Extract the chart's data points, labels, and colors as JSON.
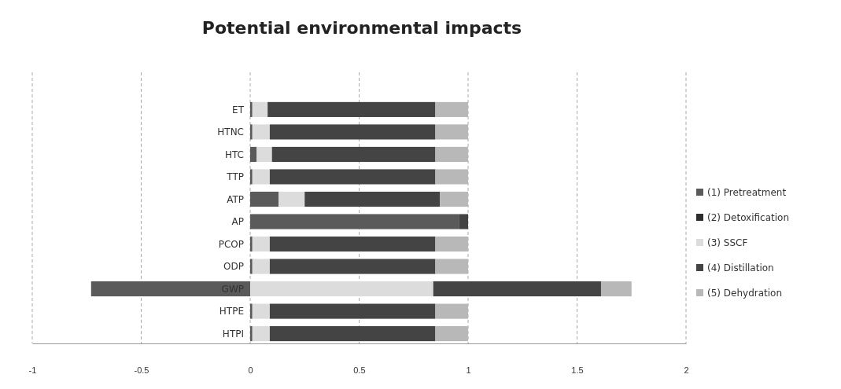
{
  "chart_data": {
    "type": "bar",
    "orientation": "horizontal",
    "stacked": true,
    "title": "Potential environmental impacts",
    "categories": [
      "ET",
      "HTNC",
      "HTC",
      "TTP",
      "ATP",
      "AP",
      "PCOP",
      "ODP",
      "GWP",
      "HTPE",
      "HTPI"
    ],
    "series": [
      {
        "name": "(1) Pretreatment",
        "color": "#5a5a5a",
        "values": [
          0.01,
          0.01,
          0.03,
          0.01,
          0.13,
          0.96,
          0.01,
          0.01,
          -0.73,
          0.01,
          0.01
        ]
      },
      {
        "name": "(2) Detoxification",
        "color": "#2e2e2e",
        "values": [
          0,
          0,
          0,
          0,
          0,
          0,
          0,
          0,
          0,
          0,
          0
        ]
      },
      {
        "name": "(3) SSCF",
        "color": "#dcdcdc",
        "values": [
          0.07,
          0.08,
          0.07,
          0.08,
          0.12,
          0,
          0.08,
          0.08,
          0.84,
          0.08,
          0.08
        ]
      },
      {
        "name": "(4) Distillation",
        "color": "#444444",
        "values": [
          0.77,
          0.76,
          0.75,
          0.76,
          0.62,
          0.04,
          0.76,
          0.76,
          0.77,
          0.76,
          0.76
        ]
      },
      {
        "name": "(5) Dehydration",
        "color": "#b8b8b8",
        "values": [
          0.15,
          0.15,
          0.15,
          0.15,
          0.13,
          0,
          0.15,
          0.15,
          0.14,
          0.15,
          0.15
        ]
      }
    ],
    "xlim": [
      -1,
      2
    ],
    "xticks": [
      -1,
      -0.5,
      0,
      0.5,
      1,
      1.5,
      2
    ],
    "grid": "x",
    "legend": "right"
  }
}
